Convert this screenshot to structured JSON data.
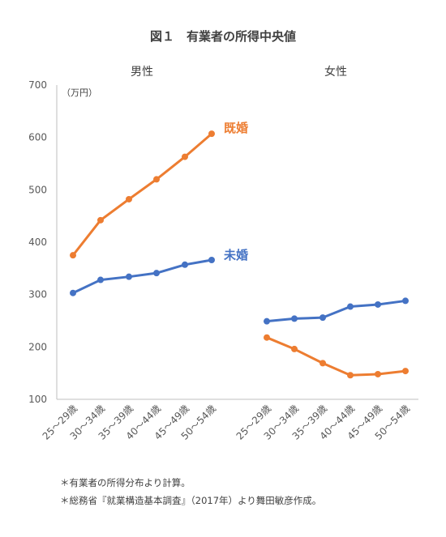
{
  "chart_data": {
    "type": "line",
    "title": "図１　有業者の所得中央値",
    "unit_label": "（万円）",
    "ylim": [
      100,
      700
    ],
    "yticks": [
      100,
      200,
      300,
      400,
      500,
      600,
      700
    ],
    "grid": false,
    "categories": [
      "25～29歳",
      "30～34歳",
      "35～39歳",
      "40～44歳",
      "45～49歳",
      "50～54歳"
    ],
    "panels": [
      {
        "label": "男性",
        "series": [
          {
            "name": "既婚",
            "color": "#ED7D31",
            "values": [
              375,
              442,
              482,
              520,
              563,
              607
            ]
          },
          {
            "name": "未婚",
            "color": "#4472C4",
            "values": [
              303,
              328,
              334,
              341,
              357,
              366
            ]
          }
        ]
      },
      {
        "label": "女性",
        "series": [
          {
            "name": "既婚",
            "color": "#ED7D31",
            "values": [
              218,
              196,
              169,
              146,
              148,
              154
            ]
          },
          {
            "name": "未婚",
            "color": "#4472C4",
            "values": [
              249,
              254,
              256,
              277,
              281,
              288
            ]
          }
        ]
      }
    ],
    "series_labels": [
      {
        "text": "既婚",
        "color": "#ED7D31"
      },
      {
        "text": "未婚",
        "color": "#4472C4"
      }
    ]
  },
  "notes": [
    "＊有業者の所得分布より計算。",
    "＊総務省『就業構造基本調査』（2017年）より舞田敏彦作成。"
  ]
}
